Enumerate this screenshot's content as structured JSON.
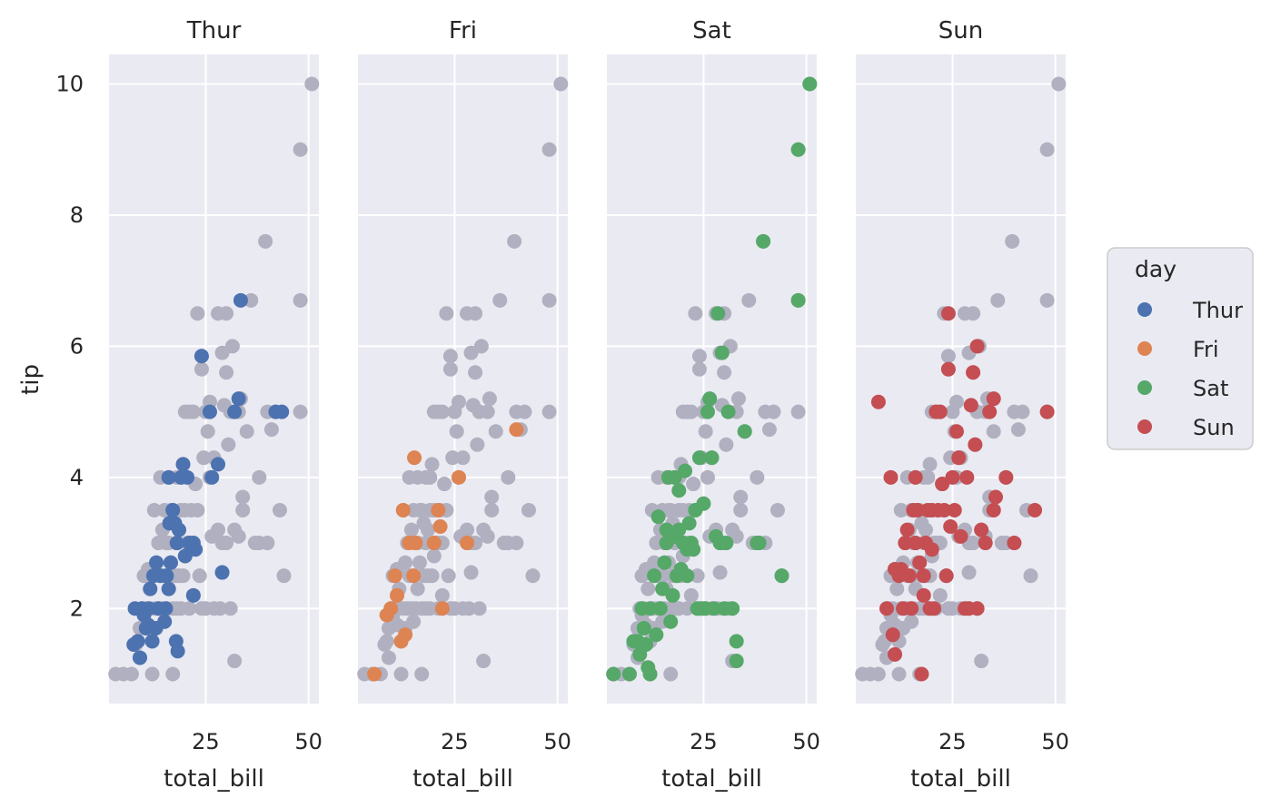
{
  "chart_data": {
    "type": "scatter",
    "xlabel": "total_bill",
    "ylabel": "tip",
    "xlim": [
      1.5,
      52.5
    ],
    "ylim": [
      0.55,
      10.45
    ],
    "xticks": [
      25,
      50
    ],
    "yticks": [
      2,
      4,
      6,
      8,
      10
    ],
    "grid": true,
    "legend": {
      "title": "day",
      "placement": "right"
    },
    "background_color": "#b0b0c0",
    "series": [
      {
        "name": "Thur",
        "color": "#4c72b0",
        "points": [
          [
            7.5,
            1.45
          ],
          [
            8.5,
            1.5
          ],
          [
            9,
            1.25
          ],
          [
            9.5,
            2
          ],
          [
            7.8,
            2
          ],
          [
            10,
            1.9
          ],
          [
            10.5,
            1.7
          ],
          [
            11,
            1.75
          ],
          [
            11.2,
            2
          ],
          [
            12,
            1.5
          ],
          [
            11.5,
            2.3
          ],
          [
            12.3,
            2.5
          ],
          [
            13,
            2.7
          ],
          [
            13.5,
            2
          ],
          [
            12.8,
            1.7
          ],
          [
            14,
            2.5
          ],
          [
            15,
            1.8
          ],
          [
            15.3,
            2
          ],
          [
            16,
            2.3
          ],
          [
            15.5,
            2.5
          ],
          [
            16.5,
            2.7
          ],
          [
            17,
            3.5
          ],
          [
            16.2,
            3.3
          ],
          [
            18,
            3
          ],
          [
            17.5,
            3.3
          ],
          [
            18.5,
            3.2
          ],
          [
            19,
            4
          ],
          [
            19.5,
            4.2
          ],
          [
            20,
            2.8
          ],
          [
            21,
            3
          ],
          [
            20.5,
            4
          ],
          [
            22,
            3
          ],
          [
            22.5,
            2.9
          ],
          [
            17.8,
            1.5
          ],
          [
            18.2,
            1.35
          ],
          [
            16,
            4
          ],
          [
            22,
            2.2
          ],
          [
            24,
            5.85
          ],
          [
            26,
            5
          ],
          [
            26.5,
            4
          ],
          [
            28,
            4.2
          ],
          [
            32,
            5
          ],
          [
            33,
            5.2
          ],
          [
            33.5,
            6.7
          ],
          [
            42,
            5
          ],
          [
            43.5,
            5
          ],
          [
            29,
            2.55
          ]
        ]
      },
      {
        "name": "Fri",
        "color": "#dd8452",
        "points": [
          [
            5.5,
            1
          ],
          [
            8.5,
            1.9
          ],
          [
            9.5,
            2
          ],
          [
            10.5,
            2.5
          ],
          [
            11,
            2.2
          ],
          [
            12,
            1.5
          ],
          [
            13,
            1.6
          ],
          [
            12.5,
            3.5
          ],
          [
            14,
            3
          ],
          [
            15,
            2.5
          ],
          [
            15.2,
            4.3
          ],
          [
            15.5,
            3
          ],
          [
            20,
            3
          ],
          [
            21,
            3.5
          ],
          [
            21.5,
            3.25
          ],
          [
            22,
            2
          ],
          [
            26,
            4
          ],
          [
            28,
            3
          ],
          [
            40,
            4.73
          ]
        ]
      },
      {
        "name": "Sat",
        "color": "#55a868",
        "points": [
          [
            3.1,
            1
          ],
          [
            7,
            1
          ],
          [
            8,
            1.5
          ],
          [
            9,
            1.5
          ],
          [
            9.5,
            1.3
          ],
          [
            10,
            2
          ],
          [
            10.5,
            1.7
          ],
          [
            11,
            1.45
          ],
          [
            11.5,
            1.1
          ],
          [
            12,
            1
          ],
          [
            12,
            2
          ],
          [
            13,
            2.5
          ],
          [
            13.5,
            1.6
          ],
          [
            14,
            3.4
          ],
          [
            14.5,
            2
          ],
          [
            15,
            2.3
          ],
          [
            15.5,
            2.7
          ],
          [
            16,
            3
          ],
          [
            16.5,
            4
          ],
          [
            17,
            1.8
          ],
          [
            17.5,
            2.2
          ],
          [
            18,
            3.1
          ],
          [
            18.5,
            2.5
          ],
          [
            19,
            3.2
          ],
          [
            19.5,
            2.6
          ],
          [
            20,
            3
          ],
          [
            20.5,
            4.1
          ],
          [
            21,
            2.5
          ],
          [
            21.5,
            3.3
          ],
          [
            22,
            3
          ],
          [
            22.5,
            2.9
          ],
          [
            23,
            3.5
          ],
          [
            23.5,
            2
          ],
          [
            24,
            4.3
          ],
          [
            24.5,
            2
          ],
          [
            25,
            3.6
          ],
          [
            25.5,
            2
          ],
          [
            26,
            5
          ],
          [
            26.5,
            5.2
          ],
          [
            27,
            4.3
          ],
          [
            27.5,
            2
          ],
          [
            28,
            3.1
          ],
          [
            28.5,
            6.5
          ],
          [
            29,
            3
          ],
          [
            29.5,
            5.9
          ],
          [
            30,
            2
          ],
          [
            30.5,
            3
          ],
          [
            31,
            5
          ],
          [
            32,
            2
          ],
          [
            33,
            1.2
          ],
          [
            33,
            1.5
          ],
          [
            35,
            4.7
          ],
          [
            38,
            3
          ],
          [
            38.5,
            3
          ],
          [
            39.5,
            7.6
          ],
          [
            44,
            2.5
          ],
          [
            48,
            6.7
          ],
          [
            48,
            9
          ],
          [
            50.8,
            10
          ],
          [
            18,
            4
          ],
          [
            19,
            3.8
          ],
          [
            21,
            2.9
          ],
          [
            16,
            3.2
          ]
        ]
      },
      {
        "name": "Sun",
        "color": "#c44e52",
        "points": [
          [
            7,
            5.15
          ],
          [
            9,
            2
          ],
          [
            10,
            4
          ],
          [
            10.5,
            1.6
          ],
          [
            11,
            1.3
          ],
          [
            11,
            2.6
          ],
          [
            12,
            2.5
          ],
          [
            12.5,
            2.6
          ],
          [
            13,
            2
          ],
          [
            13.5,
            3
          ],
          [
            14,
            3.2
          ],
          [
            14.5,
            2.5
          ],
          [
            15,
            2
          ],
          [
            15.5,
            3.5
          ],
          [
            16,
            4
          ],
          [
            16.5,
            3.5
          ],
          [
            17,
            2.7
          ],
          [
            17.5,
            1
          ],
          [
            18,
            2.5
          ],
          [
            18.5,
            3
          ],
          [
            19,
            3.5
          ],
          [
            19.5,
            2
          ],
          [
            20,
            3.5
          ],
          [
            20.5,
            2
          ],
          [
            21,
            5
          ],
          [
            21.5,
            3.5
          ],
          [
            22,
            5
          ],
          [
            22.5,
            3.9
          ],
          [
            23,
            3.5
          ],
          [
            23.5,
            2.5
          ],
          [
            24,
            5.65
          ],
          [
            24,
            6.5
          ],
          [
            24.5,
            3.25
          ],
          [
            25,
            4
          ],
          [
            25.5,
            3.5
          ],
          [
            26,
            4.7
          ],
          [
            26.5,
            4.3
          ],
          [
            27,
            3.1
          ],
          [
            28,
            2
          ],
          [
            28.5,
            4
          ],
          [
            29,
            2
          ],
          [
            29.5,
            5.1
          ],
          [
            30,
            5.6
          ],
          [
            30.5,
            4.5
          ],
          [
            31,
            2
          ],
          [
            31,
            6
          ],
          [
            32,
            3.2
          ],
          [
            33,
            3
          ],
          [
            34,
            5
          ],
          [
            35,
            5.2
          ],
          [
            35,
            3.5
          ],
          [
            35.5,
            3.7
          ],
          [
            38,
            4
          ],
          [
            40,
            3
          ],
          [
            45,
            3.5
          ],
          [
            48,
            5
          ],
          [
            16,
            3
          ],
          [
            18,
            2.2
          ],
          [
            20,
            2.9
          ]
        ]
      }
    ],
    "background_points": [
      [
        3.1,
        1
      ],
      [
        5,
        1
      ],
      [
        7,
        1
      ],
      [
        8,
        1.45
      ],
      [
        8.5,
        1.5
      ],
      [
        9,
        1.25
      ],
      [
        9,
        1.7
      ],
      [
        9.5,
        2
      ],
      [
        10,
        1.9
      ],
      [
        10,
        2.5
      ],
      [
        10.5,
        2
      ],
      [
        11,
        1.75
      ],
      [
        11,
        2.6
      ],
      [
        11.5,
        2.3
      ],
      [
        12,
        1.5
      ],
      [
        12,
        1
      ],
      [
        12.5,
        2
      ],
      [
        12.5,
        3.5
      ],
      [
        13,
        2.7
      ],
      [
        13,
        1.7
      ],
      [
        13.5,
        2
      ],
      [
        13.5,
        3
      ],
      [
        14,
        2.5
      ],
      [
        14,
        4
      ],
      [
        14.5,
        2
      ],
      [
        14.5,
        3.2
      ],
      [
        15,
        1.8
      ],
      [
        15,
        2.5
      ],
      [
        15,
        3.5
      ],
      [
        15.5,
        2
      ],
      [
        15.5,
        3
      ],
      [
        16,
        2.3
      ],
      [
        16,
        3
      ],
      [
        16,
        4
      ],
      [
        16.5,
        2.7
      ],
      [
        16.5,
        3.5
      ],
      [
        17,
        3.5
      ],
      [
        17,
        2
      ],
      [
        17,
        1
      ],
      [
        17.5,
        3.3
      ],
      [
        17.5,
        2.5
      ],
      [
        18,
        3
      ],
      [
        18,
        2
      ],
      [
        18,
        4
      ],
      [
        18.5,
        3.2
      ],
      [
        18.5,
        2.5
      ],
      [
        19,
        4
      ],
      [
        19,
        3.5
      ],
      [
        19,
        2
      ],
      [
        19.5,
        4.2
      ],
      [
        19.5,
        2.5
      ],
      [
        20,
        2.8
      ],
      [
        20,
        5
      ],
      [
        20,
        3.5
      ],
      [
        20.5,
        3
      ],
      [
        21,
        3
      ],
      [
        21,
        5
      ],
      [
        21,
        2
      ],
      [
        21.5,
        3.5
      ],
      [
        22,
        2.2
      ],
      [
        22,
        3
      ],
      [
        22,
        5
      ],
      [
        22.5,
        3.9
      ],
      [
        23,
        3.5
      ],
      [
        23,
        6.5
      ],
      [
        23.5,
        2.5
      ],
      [
        24,
        5.65
      ],
      [
        24,
        2
      ],
      [
        24.5,
        4.3
      ],
      [
        25,
        5
      ],
      [
        25,
        2
      ],
      [
        25.5,
        4.7
      ],
      [
        26,
        5.15
      ],
      [
        26,
        4
      ],
      [
        26.5,
        3.1
      ],
      [
        27,
        4.3
      ],
      [
        27,
        2
      ],
      [
        28,
        6.5
      ],
      [
        28,
        3.2
      ],
      [
        28.5,
        2
      ],
      [
        29,
        5.9
      ],
      [
        29,
        3
      ],
      [
        29.5,
        5.1
      ],
      [
        30,
        5.6
      ],
      [
        30,
        3
      ],
      [
        30.5,
        4.5
      ],
      [
        31,
        5
      ],
      [
        31,
        2
      ],
      [
        31.5,
        6
      ],
      [
        32,
        3.2
      ],
      [
        32,
        1.2
      ],
      [
        33,
        5
      ],
      [
        33,
        3.1
      ],
      [
        33.5,
        5.2
      ],
      [
        34,
        3.5
      ],
      [
        34,
        3.7
      ],
      [
        35,
        4.7
      ],
      [
        36,
        6.7
      ],
      [
        37,
        3
      ],
      [
        38,
        4
      ],
      [
        38,
        3
      ],
      [
        39.5,
        7.6
      ],
      [
        40,
        5
      ],
      [
        40,
        3
      ],
      [
        41,
        4.73
      ],
      [
        42,
        5
      ],
      [
        43,
        3.5
      ],
      [
        44,
        2.5
      ],
      [
        48,
        6.7
      ],
      [
        48,
        9
      ],
      [
        48,
        5
      ],
      [
        50.8,
        10
      ],
      [
        24,
        5.85
      ],
      [
        30,
        6.5
      ],
      [
        29,
        2.55
      ]
    ],
    "panels": [
      {
        "title": "Thur",
        "series": "Thur"
      },
      {
        "title": "Fri",
        "series": "Fri"
      },
      {
        "title": "Sat",
        "series": "Sat"
      },
      {
        "title": "Sun",
        "series": "Sun"
      }
    ]
  }
}
